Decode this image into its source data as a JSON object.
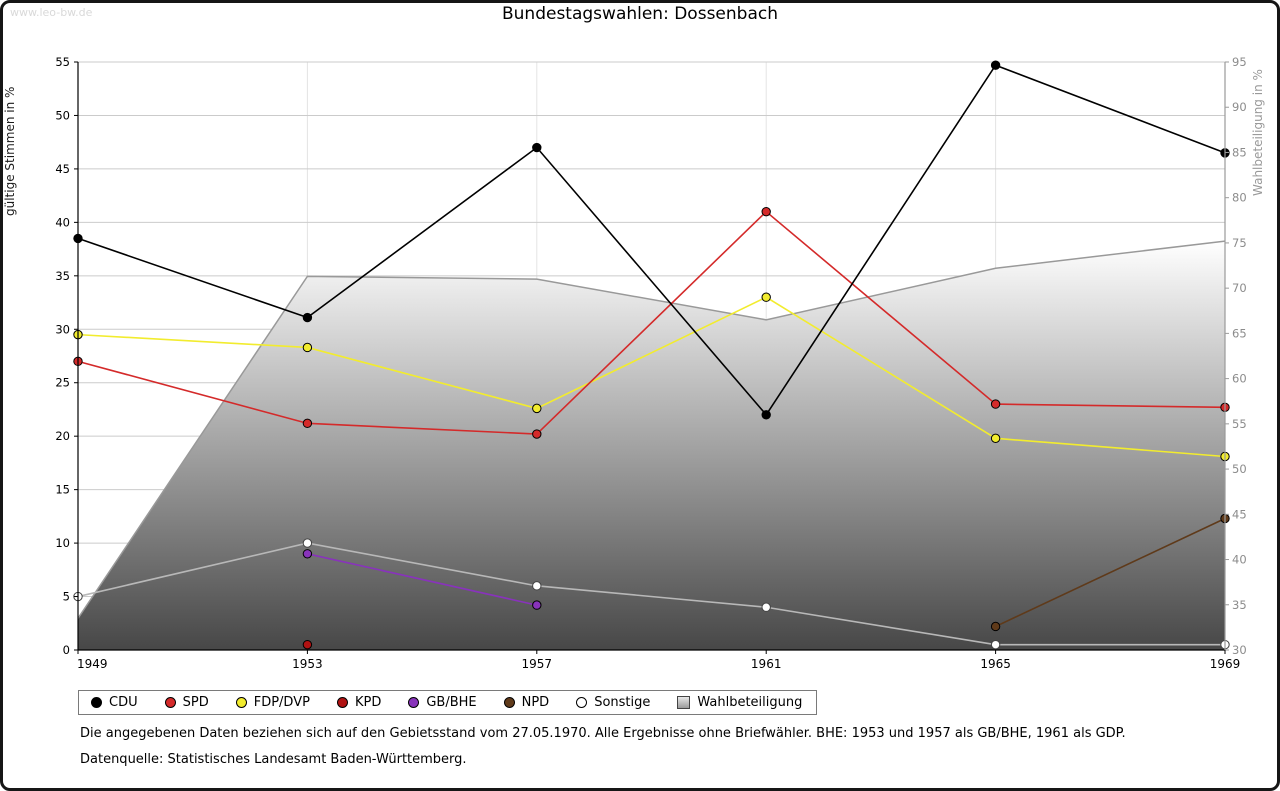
{
  "chart_data": {
    "type": "line",
    "title": "Bundestagswahlen: Dossenbach",
    "watermark": "www.leo-bw.de",
    "x": [
      1949,
      1953,
      1957,
      1961,
      1965,
      1969
    ],
    "ylabel_left": "gültige Stimmen in %",
    "ylabel_right": "Wahlbeteiligung in %",
    "ylim_left": [
      0,
      55
    ],
    "ylim_right": [
      30,
      95
    ],
    "ytick_step": 5,
    "grid": true,
    "legend_position": "bottom",
    "area_fill_top": "#ffffff",
    "area_fill_bottom": "#474747",
    "series": [
      {
        "name": "CDU",
        "type": "line",
        "axis": "left",
        "color": "#000000",
        "values": [
          38.5,
          31.1,
          47.0,
          22.0,
          54.7,
          46.5
        ]
      },
      {
        "name": "SPD",
        "type": "line",
        "axis": "left",
        "color": "#d42a2a",
        "values": [
          27.0,
          21.2,
          20.2,
          41.0,
          23.0,
          22.7
        ]
      },
      {
        "name": "FDP/DVP",
        "type": "line",
        "axis": "left",
        "color": "#f2ec2e",
        "values": [
          29.5,
          28.3,
          22.6,
          33.0,
          19.8,
          18.1
        ]
      },
      {
        "name": "KPD",
        "type": "line",
        "axis": "left",
        "color": "#b01212",
        "values": [
          null,
          0.5,
          null,
          null,
          null,
          null
        ]
      },
      {
        "name": "GB/BHE",
        "type": "line",
        "axis": "left",
        "color": "#8833bb",
        "values": [
          null,
          9.0,
          4.2,
          null,
          null,
          null
        ]
      },
      {
        "name": "NPD",
        "type": "line",
        "axis": "left",
        "color": "#5f3a1a",
        "values": [
          null,
          null,
          null,
          null,
          2.2,
          12.3
        ]
      },
      {
        "name": "Sonstige",
        "type": "line",
        "axis": "left",
        "color": "#b8b8b8",
        "marker_fill": "#ffffff",
        "marker_stroke": "#444444",
        "values": [
          5.0,
          10.0,
          6.0,
          4.0,
          0.5,
          0.5
        ]
      },
      {
        "name": "Wahlbeteiligung",
        "type": "area",
        "axis": "right",
        "color": "#999999",
        "values": [
          33.5,
          71.3,
          71.0,
          66.5,
          72.2,
          75.2
        ]
      }
    ],
    "notes": {
      "line1": "Die angegebenen Daten beziehen sich auf den Gebietsstand vom 27.05.1970. Alle Ergebnisse ohne Briefwähler. BHE: 1953 und 1957 als GB/BHE, 1961 als GDP.",
      "line2": "Datenquelle: Statistisches Landesamt Baden-Württemberg."
    }
  }
}
